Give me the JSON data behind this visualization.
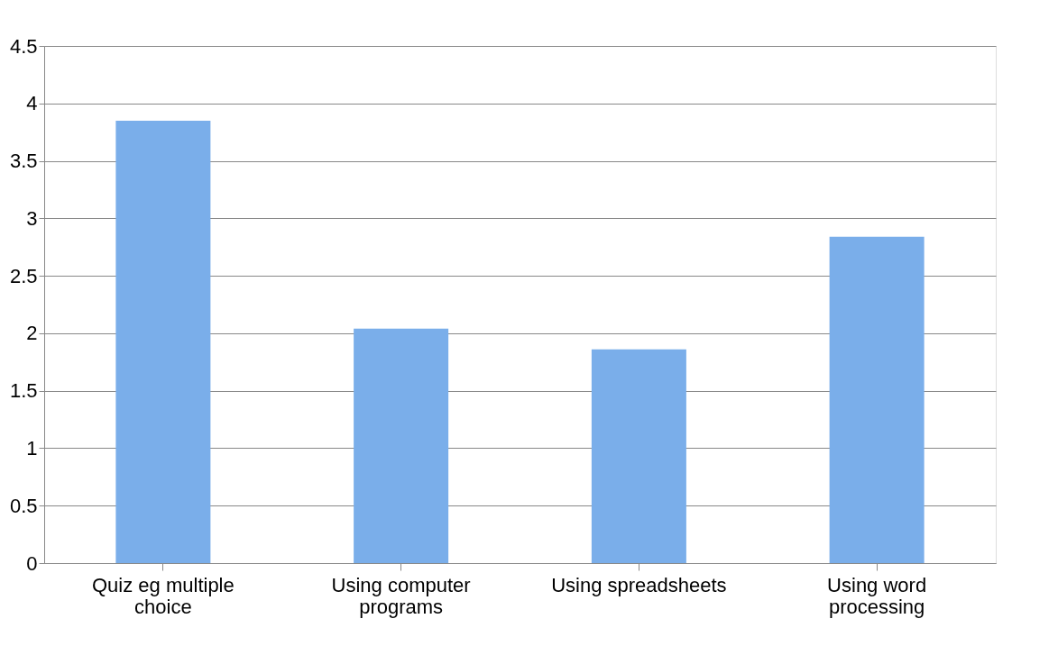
{
  "chart_data": {
    "type": "bar",
    "categories": [
      "Quiz eg multiple choice",
      "Using computer programs",
      "Using spreadsheets",
      "Using word processing"
    ],
    "values": [
      3.85,
      2.04,
      1.86,
      2.84
    ],
    "color": "#7aaeea",
    "ylim": [
      0,
      4.5
    ],
    "yticks": [
      0,
      0.5,
      1,
      1.5,
      2,
      2.5,
      3,
      3.5,
      4,
      4.5
    ],
    "grid": "y"
  }
}
